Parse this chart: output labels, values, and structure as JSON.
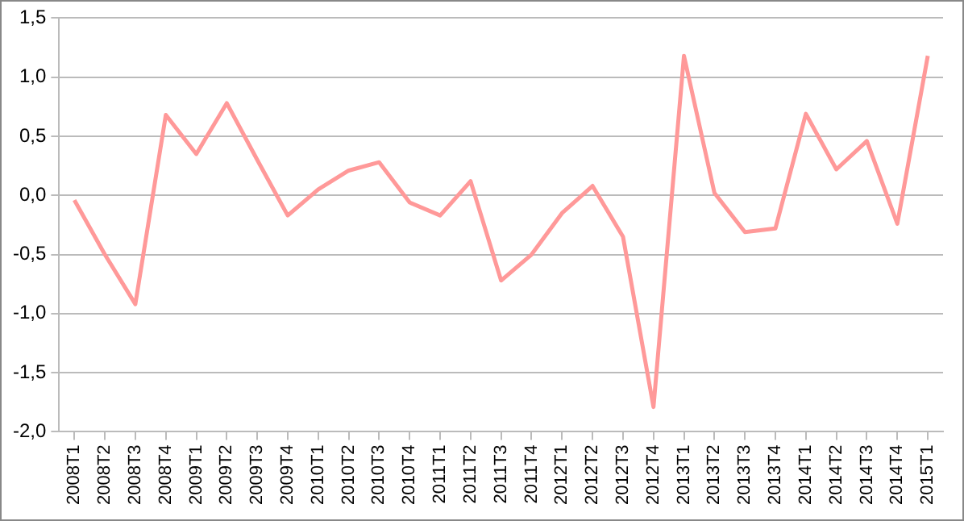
{
  "chart_data": {
    "type": "line",
    "categories": [
      "2008T1",
      "2008T2",
      "2008T3",
      "2008T4",
      "2009T1",
      "2009T2",
      "2009T3",
      "2009T4",
      "2010T1",
      "2010T2",
      "2010T3",
      "2010T4",
      "2011T1",
      "2011T2",
      "2011T3",
      "2011T4",
      "2012T1",
      "2012T2",
      "2012T3",
      "2012T4",
      "2013T1",
      "2013T2",
      "2013T3",
      "2013T4",
      "2014T1",
      "2014T2",
      "2014T3",
      "2014T4",
      "2015T1"
    ],
    "series": [
      {
        "color": "#ff9999",
        "values": [
          -0.04,
          -0.5,
          -0.92,
          0.68,
          0.35,
          0.78,
          0.3,
          -0.17,
          0.05,
          0.21,
          0.28,
          -0.06,
          -0.17,
          0.12,
          -0.72,
          -0.5,
          -0.15,
          0.08,
          -0.35,
          -1.79,
          1.18,
          0.02,
          -0.31,
          -0.28,
          0.69,
          0.22,
          0.46,
          -0.24,
          1.18
        ]
      }
    ],
    "ylim": [
      -2,
      1.5
    ],
    "yticks": [
      {
        "value": -2,
        "label": "-2,0"
      },
      {
        "value": -1.5,
        "label": "-1,5"
      },
      {
        "value": -1,
        "label": "-1,0"
      },
      {
        "value": -0.5,
        "label": "-0,5"
      },
      {
        "value": 0,
        "label": "0,0"
      },
      {
        "value": 0.5,
        "label": "0,5"
      },
      {
        "value": 1,
        "label": "1,0"
      },
      {
        "value": 1.5,
        "label": "1,5"
      }
    ],
    "grid": "y",
    "legend": false,
    "marker": "none",
    "line_style": "solid"
  }
}
